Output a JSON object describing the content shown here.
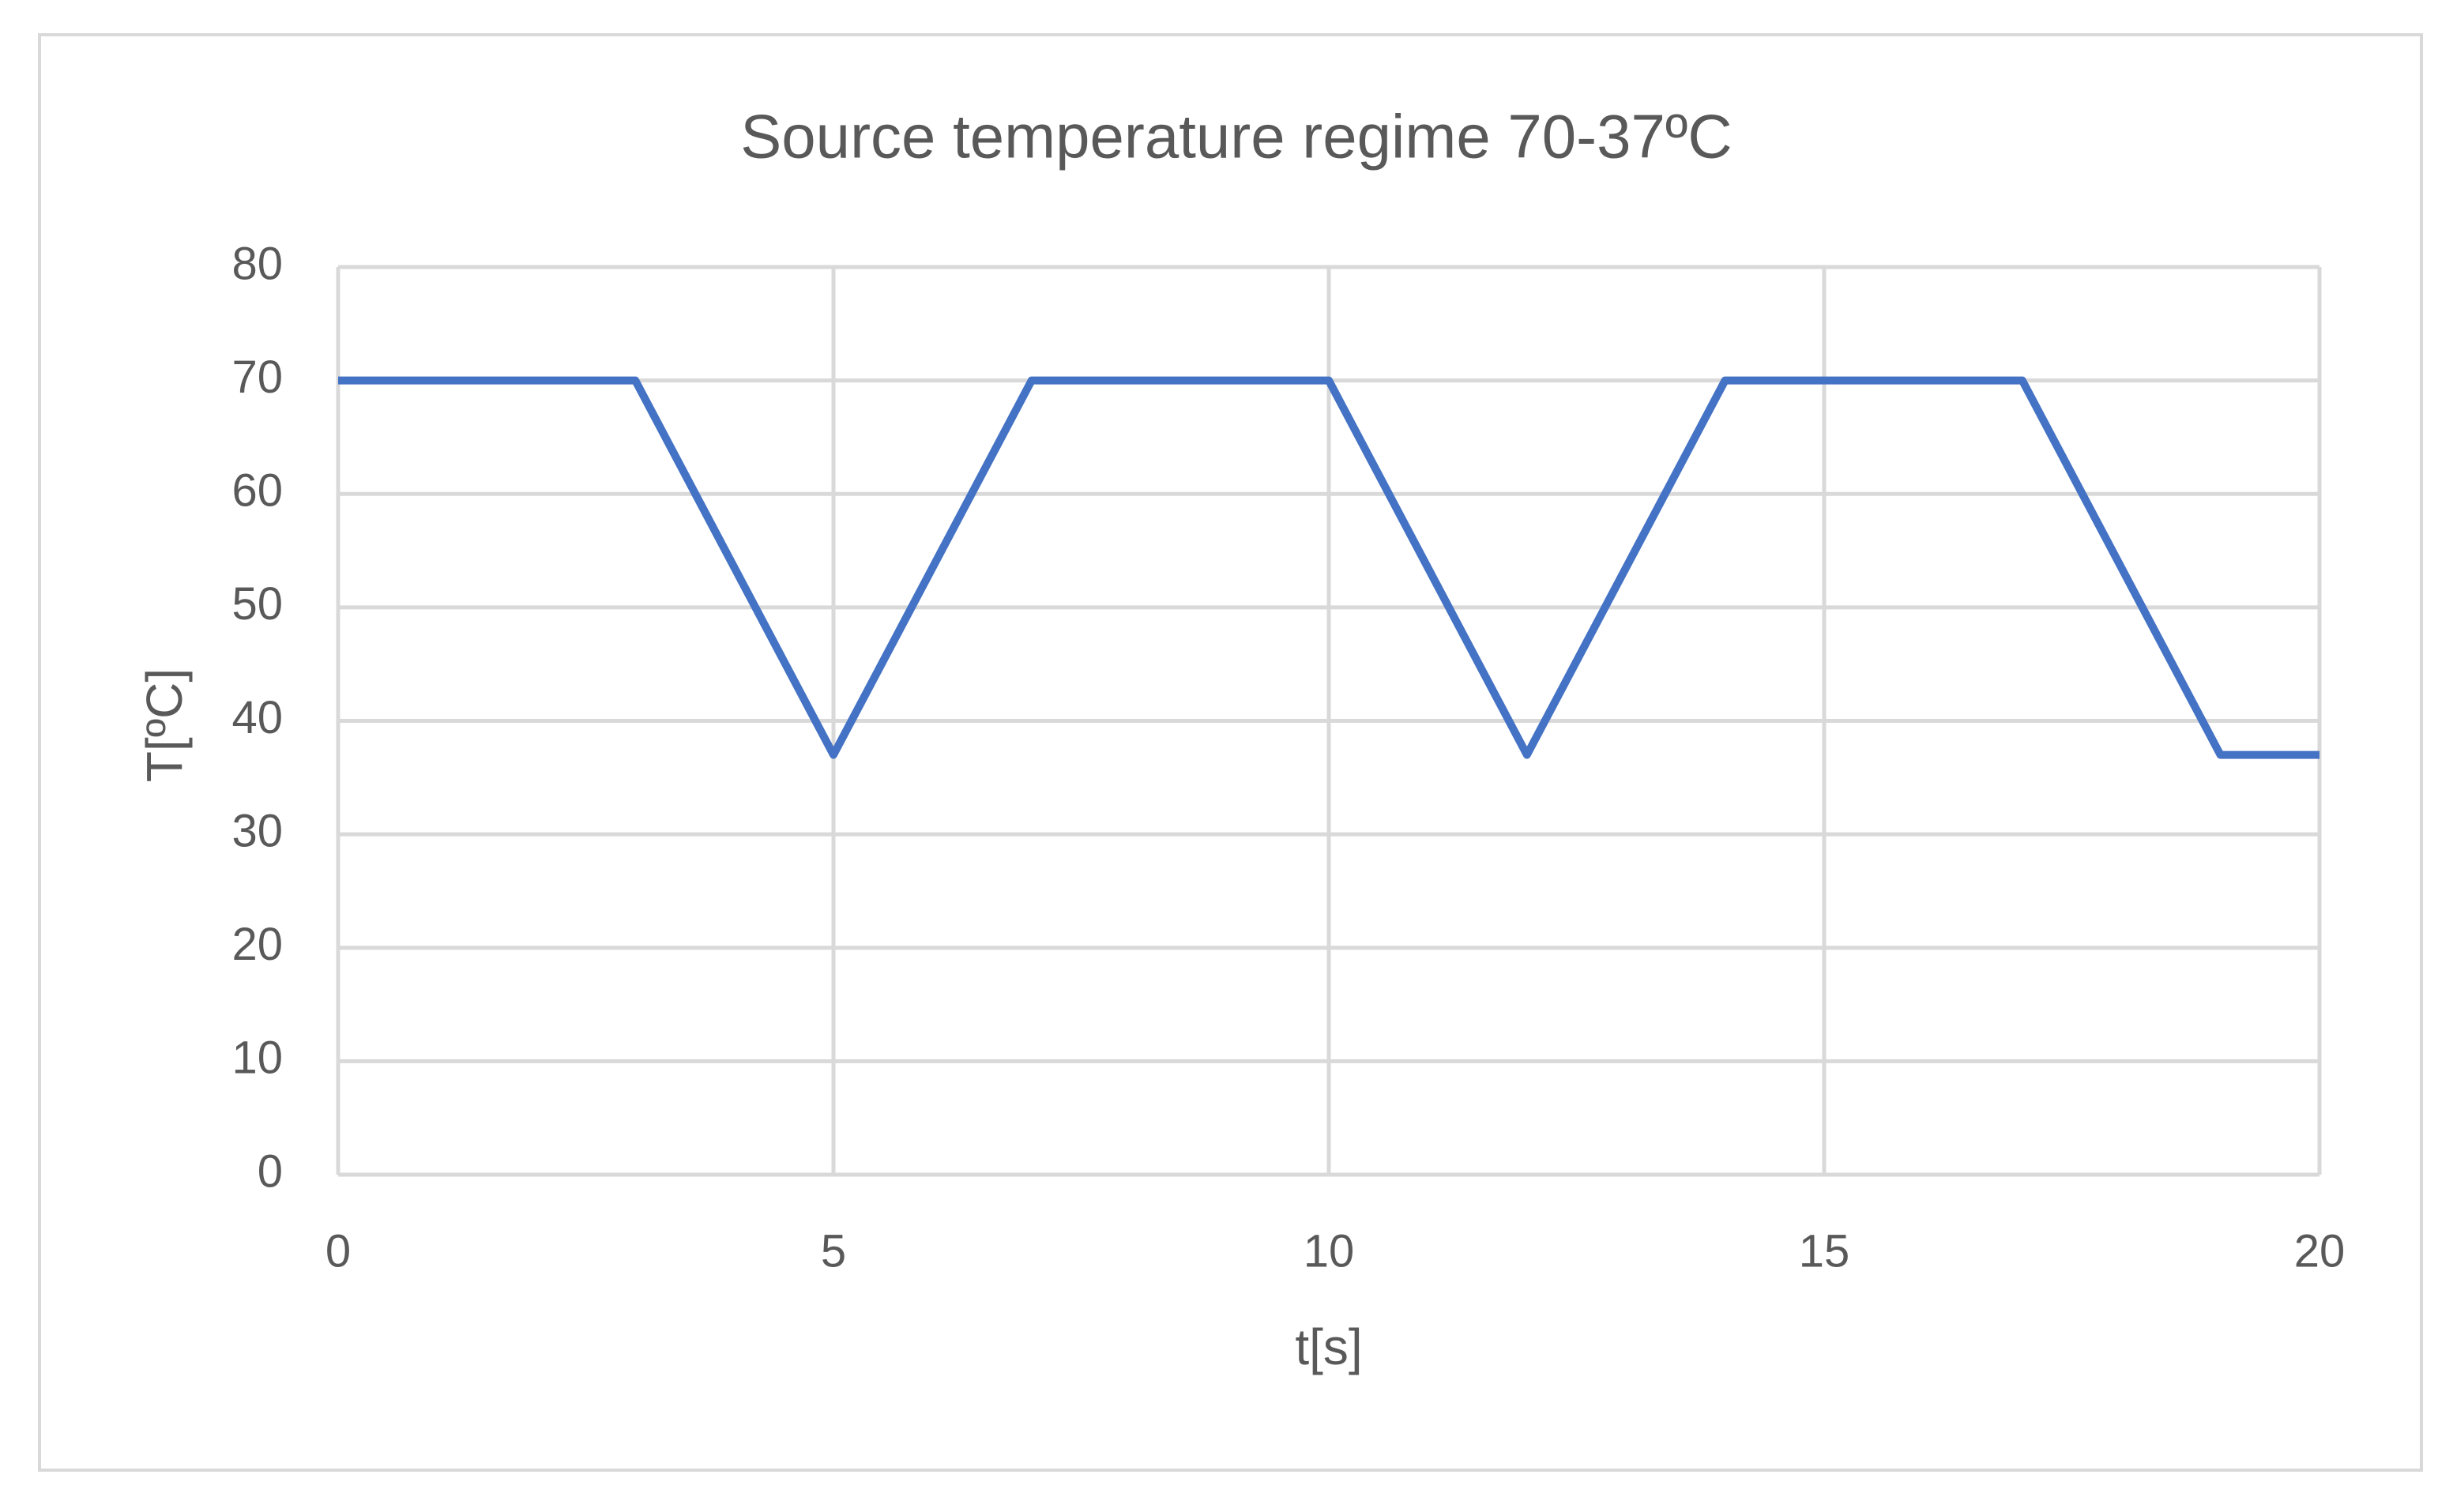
{
  "chart_data": {
    "type": "line",
    "title": "Source temperature regime 70-37ºC",
    "x_label": "t[s]",
    "y_label": "T[ºC]",
    "x": [
      0,
      3,
      5,
      7,
      10,
      12,
      14,
      17,
      19,
      20
    ],
    "series": [
      {
        "color": "#4472c4",
        "values": [
          70,
          70,
          37,
          70,
          70,
          37,
          70,
          70,
          37,
          37
        ]
      }
    ],
    "xlim": [
      0,
      20
    ],
    "xticks": [
      0,
      5,
      10,
      15,
      20
    ],
    "ylim": [
      0,
      80
    ],
    "yticks": [
      0,
      10,
      20,
      30,
      40,
      50,
      60,
      70,
      80
    ],
    "grid": true
  }
}
